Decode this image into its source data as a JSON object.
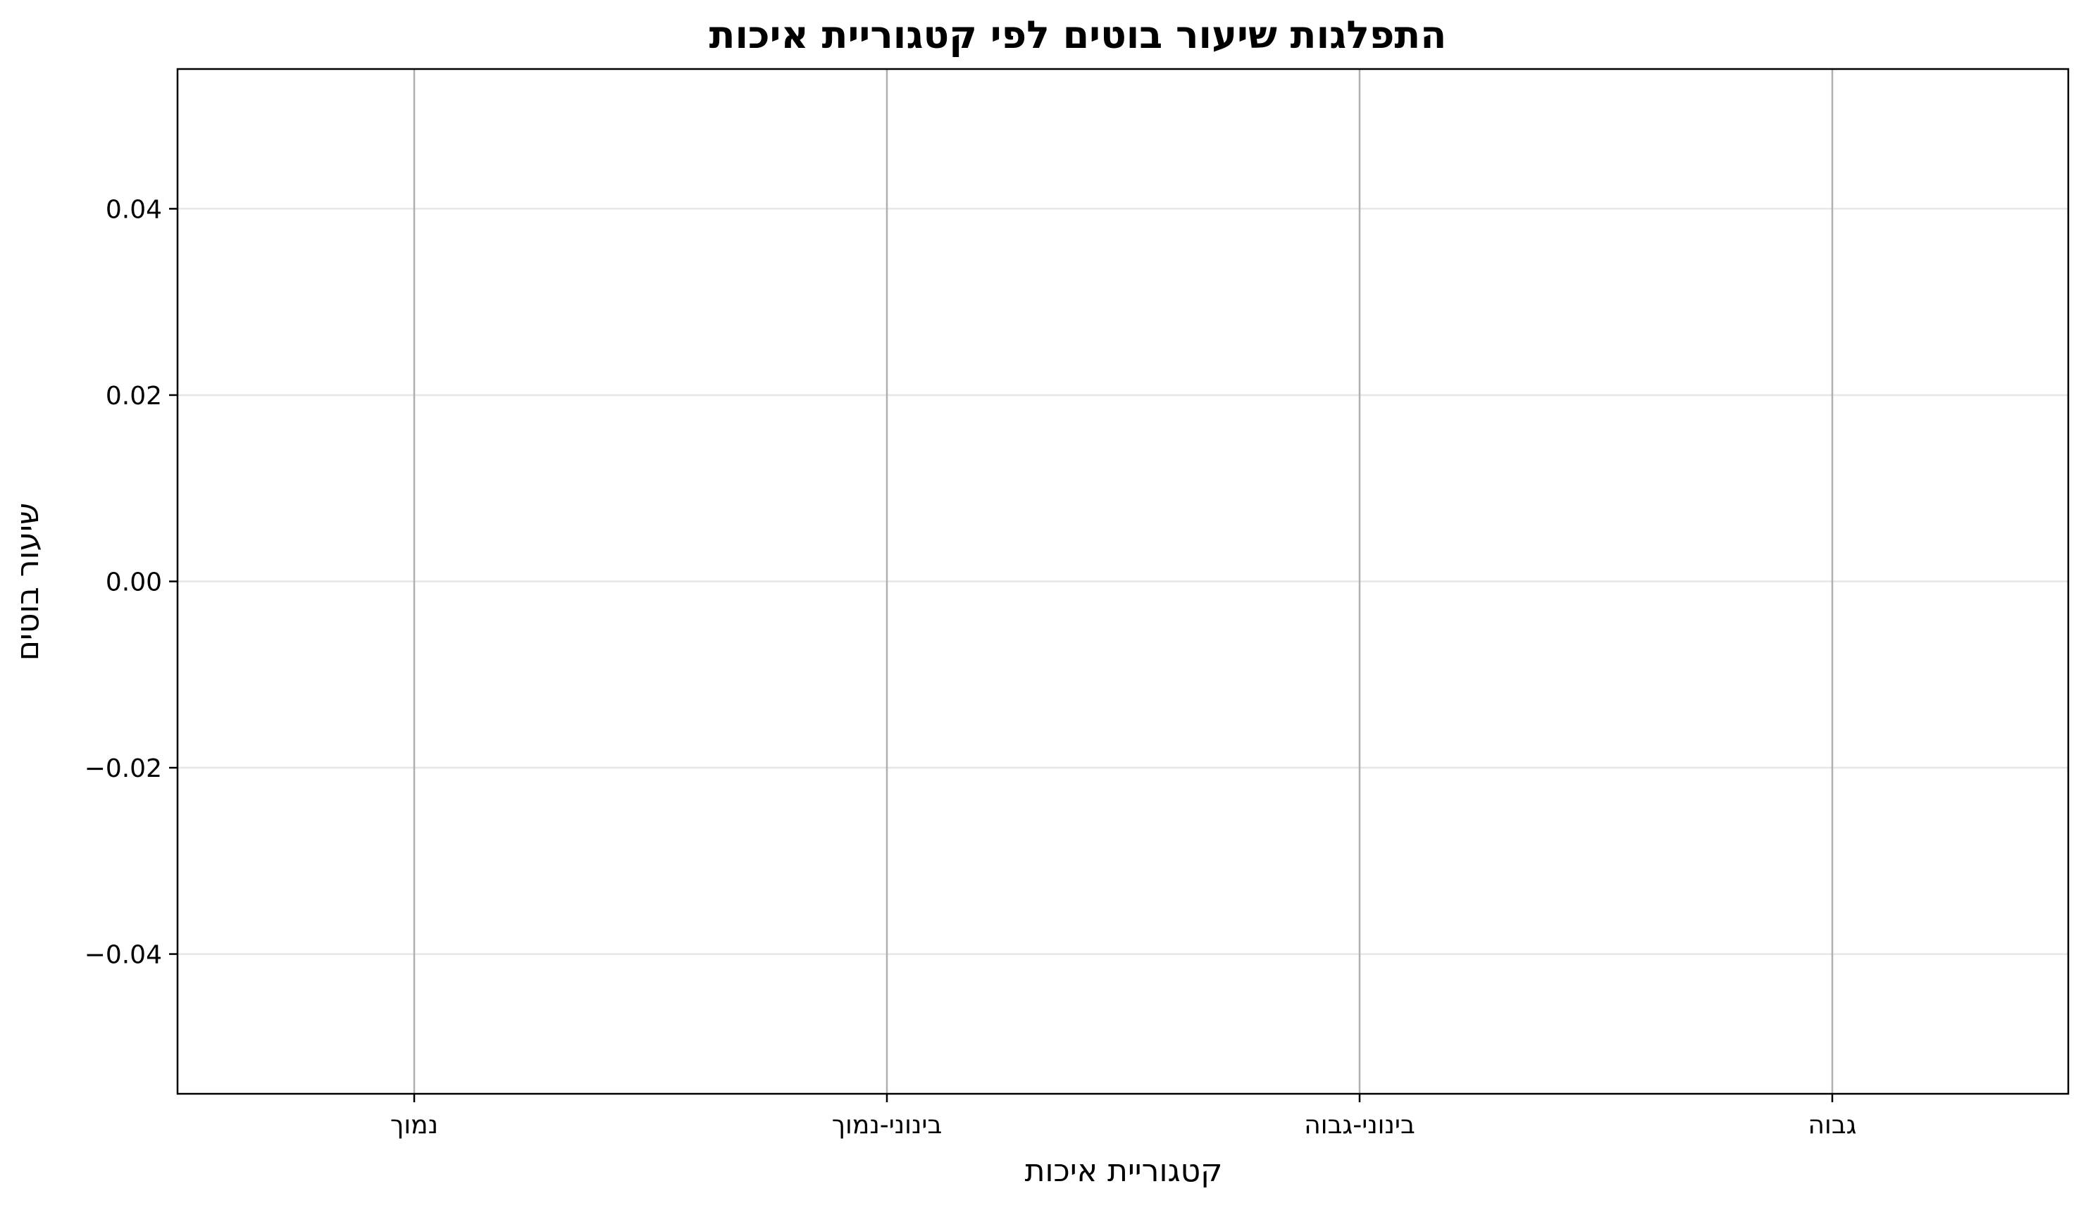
{
  "chart_data": {
    "type": "line",
    "title": "התפלגות שיעור בוטים לפי קטגוריית איכות",
    "xlabel": "קטגוריית איכות",
    "ylabel": "שיעור בוטים",
    "categories": [
      "נמוך",
      "בינוני-נמוך",
      "בינוני-גבוה",
      "גבוה"
    ],
    "series": [],
    "ylim": [
      -0.055,
      0.055
    ],
    "yticks": [
      -0.04,
      -0.02,
      0.0,
      0.02,
      0.04
    ],
    "ytick_labels": [
      "−0.04",
      "−0.02",
      "0.00",
      "0.02",
      "0.04"
    ],
    "grid": true,
    "legend": "none",
    "colors": {
      "vertical_grid": "#b0b0b0",
      "horizontal_grid": "#e6e6e6",
      "axes": "#000000",
      "background": "#ffffff"
    }
  }
}
